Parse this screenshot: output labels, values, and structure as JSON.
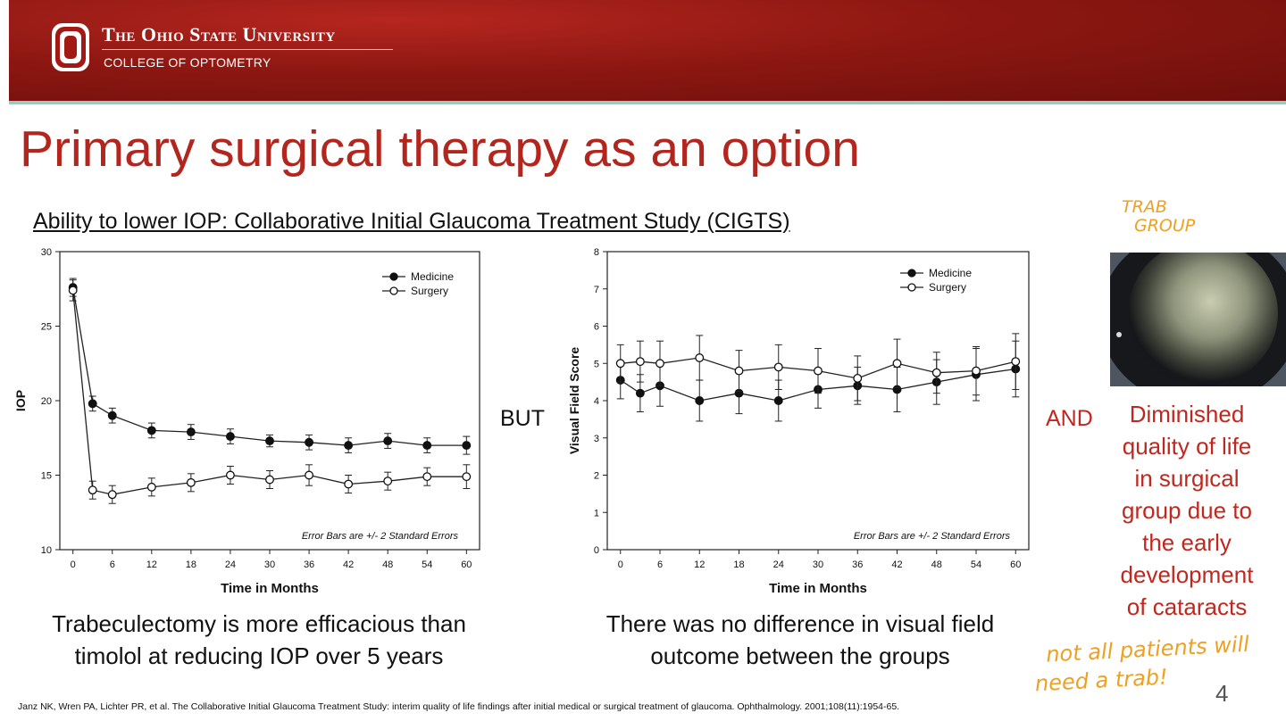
{
  "header": {
    "university": "The Ohio State University",
    "college": "COLLEGE OF OPTOMETRY"
  },
  "slide": {
    "title": "Primary surgical therapy as an option",
    "subtitle": "Ability to lower IOP: Collaborative Initial Glaucoma Treatment Study (CIGTS)",
    "but_label": "BUT",
    "and_label": "AND",
    "caption_left": [
      "Trabeculectomy is more efficacious than",
      "timolol at reducing IOP over 5 years"
    ],
    "caption_mid": [
      "There was no difference in visual field",
      "outcome between the groups"
    ],
    "right_text": [
      "Diminished",
      "quality of life",
      "in surgical",
      "group due to",
      "the early",
      "development",
      "of cataracts"
    ],
    "handwritten_top": [
      "TRAB",
      "GROUP"
    ],
    "handwritten_bottom": [
      "not all patients will",
      "need a trab!"
    ],
    "citation": "Janz NK, Wren PA, Lichter PR, et al. The Collaborative Initial Glaucoma Treatment Study: interim quality of life findings after initial medical or surgical treatment of glaucoma. Ophthalmology. 2001;108(11):1954-65.",
    "page_number": "4"
  },
  "colors": {
    "brand_red": "#b3261e",
    "accent_orange": "#f0a020"
  },
  "chart_data": [
    {
      "type": "line",
      "xlabel": "Time in Months",
      "ylabel": "IOP",
      "xticks": [
        0,
        6,
        12,
        18,
        24,
        30,
        36,
        42,
        48,
        54,
        60
      ],
      "ylim": [
        10,
        30
      ],
      "yticks": [
        10,
        15,
        20,
        25,
        30
      ],
      "note": "Error Bars are +/- 2 Standard Errors",
      "legend_position": "top-right",
      "series": [
        {
          "name": "Medicine",
          "marker": "filled",
          "x": [
            0,
            3,
            6,
            12,
            18,
            24,
            30,
            36,
            42,
            48,
            54,
            60
          ],
          "y": [
            27.6,
            19.8,
            19.0,
            18.0,
            17.9,
            17.6,
            17.3,
            17.2,
            17.0,
            17.3,
            17.0,
            17.0
          ],
          "err": [
            0.6,
            0.5,
            0.5,
            0.5,
            0.5,
            0.5,
            0.4,
            0.5,
            0.5,
            0.5,
            0.5,
            0.6
          ]
        },
        {
          "name": "Surgery",
          "marker": "open",
          "x": [
            0,
            3,
            6,
            12,
            18,
            24,
            30,
            36,
            42,
            48,
            54,
            60
          ],
          "y": [
            27.4,
            14.0,
            13.7,
            14.2,
            14.5,
            15.0,
            14.7,
            15.0,
            14.4,
            14.6,
            14.9,
            14.9
          ],
          "err": [
            0.7,
            0.6,
            0.6,
            0.6,
            0.6,
            0.6,
            0.6,
            0.7,
            0.6,
            0.6,
            0.6,
            0.8
          ]
        }
      ]
    },
    {
      "type": "line",
      "xlabel": "Time in Months",
      "ylabel": "Visual Field Score",
      "xticks": [
        0,
        6,
        12,
        18,
        24,
        30,
        36,
        42,
        48,
        54,
        60
      ],
      "ylim": [
        0,
        8
      ],
      "yticks": [
        0,
        1,
        2,
        3,
        4,
        5,
        6,
        7,
        8
      ],
      "note": "Error Bars are +/- 2 Standard Errors",
      "legend_position": "top-right",
      "series": [
        {
          "name": "Medicine",
          "marker": "filled",
          "x": [
            0,
            3,
            6,
            12,
            18,
            24,
            30,
            36,
            42,
            48,
            54,
            60
          ],
          "y": [
            4.55,
            4.2,
            4.4,
            4.0,
            4.2,
            4.0,
            4.3,
            4.4,
            4.3,
            4.5,
            4.7,
            4.85
          ],
          "err": [
            0.5,
            0.5,
            0.55,
            0.55,
            0.55,
            0.55,
            0.5,
            0.5,
            0.6,
            0.6,
            0.7,
            0.75
          ]
        },
        {
          "name": "Surgery",
          "marker": "open",
          "x": [
            0,
            3,
            6,
            12,
            18,
            24,
            30,
            36,
            42,
            48,
            54,
            60
          ],
          "y": [
            5.0,
            5.05,
            5.0,
            5.15,
            4.8,
            4.9,
            4.8,
            4.6,
            5.0,
            4.75,
            4.8,
            5.05
          ],
          "err": [
            0.5,
            0.55,
            0.6,
            0.6,
            0.55,
            0.6,
            0.6,
            0.6,
            0.65,
            0.55,
            0.65,
            0.75
          ]
        }
      ]
    }
  ]
}
